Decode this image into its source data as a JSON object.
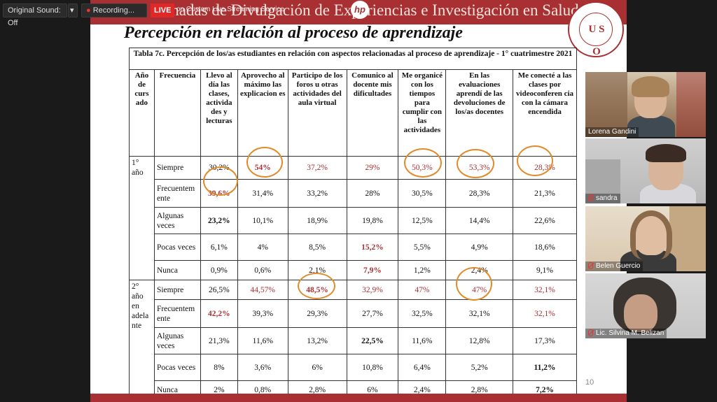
{
  "zoom": {
    "original_sound": "Original Sound: Off",
    "recording": "Recording...",
    "live": "LIVE",
    "live_service": "on Custom Live Streaming Service"
  },
  "slide": {
    "header_title": "Tras las Jornadas de Divulgación de Experiencias e Investigación en Salud",
    "title": "Percepción en relación al proceso de aprendizaje",
    "page_number": "10",
    "table": {
      "caption": "Tabla 7c. Percepción de los/as estudiantes en relación con aspectos relacionadas al proceso de aprendizaje - 1° cuatrimestre 2021",
      "headers": [
        "Año de curs ado",
        "Frecuencia",
        "Llevo al día las clases, activida des y lecturas",
        "Aprovecho al máximo las explicacion es",
        "Participo de los foros u otras actividades del aula virtual",
        "Comunico al docente mis dificultades",
        "Me organicé con los tiempos para cumplir con las actividades",
        "En las evaluaciones aprendí de las devoluciones de los/as docentes",
        "Me conecté a las clases por videoconferen cia con la cámara encendida"
      ],
      "groups": [
        {
          "year": "1° año",
          "rows": [
            {
              "freq": "Siempre",
              "vals": [
                "30,2%",
                "54%",
                "37,2%",
                "29%",
                "50,3%",
                "53,3%",
                "28,3%"
              ]
            },
            {
              "freq": "Frecuentem ente",
              "vals": [
                "39,6%",
                "31,4%",
                "33,2%",
                "28%",
                "30,5%",
                "28,3%",
                "21,3%"
              ]
            },
            {
              "freq": "Algunas veces",
              "vals": [
                "23,2%",
                "10,1%",
                "18,9%",
                "19,8%",
                "12,5%",
                "14,4%",
                "22,6%"
              ]
            },
            {
              "freq": "Pocas veces",
              "vals": [
                "6,1%",
                "4%",
                "8,5%",
                "15,2%",
                "5,5%",
                "4,9%",
                "18,6%"
              ]
            },
            {
              "freq": "Nunca",
              "vals": [
                "0,9%",
                "0,6%",
                "2,1%",
                "7,9%",
                "1,2%",
                "2,4%",
                "9,1%"
              ]
            }
          ]
        },
        {
          "year": "2° año en adela nte",
          "rows": [
            {
              "freq": "Siempre",
              "vals": [
                "26,5%",
                "44,57%",
                "48,5%",
                "32,9%",
                "47%",
                "47%",
                "32,1%"
              ]
            },
            {
              "freq": "Frecuentem ente",
              "vals": [
                "42,2%",
                "39,3%",
                "29,3%",
                "27,7%",
                "32,5%",
                "32,1%",
                "32,1%"
              ]
            },
            {
              "freq": "Algunas veces",
              "vals": [
                "21,3%",
                "11,6%",
                "13,2%",
                "22,5%",
                "11,6%",
                "12,8%",
                "17,3%"
              ]
            },
            {
              "freq": "Pocas veces",
              "vals": [
                "8%",
                "3,6%",
                "6%",
                "10,8%",
                "6,4%",
                "5,2%",
                "11,2%"
              ]
            },
            {
              "freq": "Nunca",
              "vals": [
                "2%",
                "0,8%",
                "2,8%",
                "6%",
                "2,4%",
                "2,8%",
                "7,2%"
              ]
            }
          ]
        }
      ]
    }
  },
  "participants": [
    {
      "name": "Lorena Gandini"
    },
    {
      "name": "sandra"
    },
    {
      "name": "Belen Guercio"
    },
    {
      "name": "Lic. Silvina M. Belizan"
    }
  ],
  "colors": {
    "accent_red": "#a83032",
    "highlight_circle": "#e08a2a"
  }
}
